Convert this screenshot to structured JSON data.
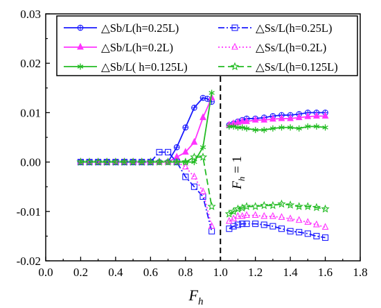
{
  "chart_data": {
    "type": "line",
    "xlabel": "F_h",
    "xlabel_main": "F",
    "xlabel_sub": "h",
    "ylabel": "",
    "xlim": [
      0.0,
      1.8
    ],
    "ylim": [
      -0.02,
      0.03
    ],
    "xticks": [
      0.0,
      0.2,
      0.4,
      0.6,
      0.8,
      1.0,
      1.2,
      1.4,
      1.6,
      1.8
    ],
    "xtick_labels": [
      "0.0",
      "0.2",
      "0.4",
      "0.6",
      "0.8",
      "1.0",
      "1.2",
      "1.4",
      "1.6",
      "1.8"
    ],
    "yticks": [
      -0.02,
      -0.01,
      0.0,
      0.01,
      0.02,
      0.03
    ],
    "ytick_labels": [
      "-0.02",
      "-0.01",
      "0.00",
      "0.01",
      "0.02",
      "0.03"
    ],
    "grid": false,
    "legend_position": "top",
    "annotations": [
      {
        "text": "F_h = 1",
        "main": "F",
        "sub": "h",
        "rest": " = 1",
        "x": 1.0
      }
    ],
    "series": [
      {
        "name": "△Sb/L(h=0.25L)",
        "color": "#1a1aff",
        "marker": "circle",
        "dash": "solid",
        "x": [
          0.2,
          0.25,
          0.3,
          0.35,
          0.4,
          0.45,
          0.5,
          0.55,
          0.6,
          0.65,
          0.7,
          0.75,
          0.8,
          0.85,
          0.9,
          0.925,
          0.95,
          1.05,
          1.075,
          1.1,
          1.125,
          1.15,
          1.2,
          1.25,
          1.3,
          1.35,
          1.4,
          1.45,
          1.5,
          1.55,
          1.6
        ],
        "y": [
          0.0,
          0.0,
          0.0,
          0.0,
          0.0,
          0.0,
          0.0,
          0.0,
          0.0,
          0.0,
          0.0,
          0.003,
          0.007,
          0.011,
          0.013,
          0.0128,
          0.0122,
          0.0075,
          0.0078,
          0.0082,
          0.0085,
          0.0088,
          0.0088,
          0.009,
          0.0093,
          0.0095,
          0.0095,
          0.0097,
          0.01,
          0.01,
          0.01
        ]
      },
      {
        "name": "△Sb/L(h=0.2L)",
        "color": "#ff33ff",
        "marker": "triangle",
        "dash": "solid",
        "x": [
          0.2,
          0.25,
          0.3,
          0.35,
          0.4,
          0.45,
          0.5,
          0.55,
          0.6,
          0.65,
          0.7,
          0.75,
          0.8,
          0.85,
          0.9,
          0.95,
          1.05,
          1.075,
          1.1,
          1.125,
          1.15,
          1.2,
          1.25,
          1.3,
          1.35,
          1.4,
          1.45,
          1.5,
          1.55,
          1.6
        ],
        "y": [
          0.0,
          0.0,
          0.0,
          0.0,
          0.0,
          0.0,
          0.0,
          0.0,
          0.0,
          0.0,
          0.0,
          0.001,
          0.002,
          0.004,
          0.009,
          0.013,
          0.0075,
          0.0078,
          0.008,
          0.0082,
          0.0082,
          0.0085,
          0.0085,
          0.0087,
          0.0088,
          0.0088,
          0.009,
          0.0092,
          0.0093,
          0.0093
        ]
      },
      {
        "name": "△Sb/L( h=0.125L)",
        "color": "#22bb22",
        "marker": "asterisk",
        "dash": "solid",
        "x": [
          0.2,
          0.25,
          0.3,
          0.35,
          0.4,
          0.45,
          0.5,
          0.55,
          0.6,
          0.65,
          0.7,
          0.75,
          0.8,
          0.85,
          0.9,
          0.95,
          1.05,
          1.075,
          1.1,
          1.125,
          1.15,
          1.2,
          1.25,
          1.3,
          1.35,
          1.4,
          1.45,
          1.5,
          1.55,
          1.6
        ],
        "y": [
          0.0,
          0.0,
          0.0,
          0.0,
          0.0,
          0.0,
          0.0,
          0.0,
          0.0,
          0.0,
          0.0,
          0.0,
          0.0,
          0.0,
          0.003,
          0.014,
          0.0072,
          0.0072,
          0.007,
          0.007,
          0.0068,
          0.0065,
          0.0065,
          0.0068,
          0.007,
          0.007,
          0.0068,
          0.0072,
          0.0072,
          0.007
        ]
      },
      {
        "name": "△Ss/L(h=0.25L)",
        "color": "#1a1aff",
        "marker": "square",
        "dash": "dashdot",
        "x": [
          0.2,
          0.25,
          0.3,
          0.35,
          0.4,
          0.45,
          0.5,
          0.55,
          0.6,
          0.65,
          0.7,
          0.75,
          0.8,
          0.85,
          0.9,
          0.95,
          1.05,
          1.075,
          1.1,
          1.125,
          1.15,
          1.2,
          1.25,
          1.3,
          1.35,
          1.4,
          1.45,
          1.5,
          1.55,
          1.6
        ],
        "y": [
          0.0,
          0.0,
          0.0,
          0.0,
          0.0,
          0.0,
          0.0,
          0.0,
          0.0,
          0.002,
          0.002,
          0.0,
          -0.003,
          -0.005,
          -0.007,
          -0.014,
          -0.0135,
          -0.013,
          -0.0127,
          -0.0125,
          -0.0125,
          -0.0125,
          -0.0127,
          -0.013,
          -0.0135,
          -0.014,
          -0.0142,
          -0.0145,
          -0.015,
          -0.0153
        ]
      },
      {
        "name": "△Ss/L(h=0.2L)",
        "color": "#ff33ff",
        "marker": "triangle-open",
        "dash": "dotted",
        "x": [
          0.2,
          0.25,
          0.3,
          0.35,
          0.4,
          0.45,
          0.5,
          0.55,
          0.6,
          0.65,
          0.7,
          0.75,
          0.8,
          0.85,
          0.9,
          0.95,
          1.05,
          1.075,
          1.1,
          1.125,
          1.15,
          1.2,
          1.25,
          1.3,
          1.35,
          1.4,
          1.45,
          1.5,
          1.55,
          1.6
        ],
        "y": [
          0.0,
          0.0,
          0.0,
          0.0,
          0.0,
          0.0,
          0.0,
          0.0,
          0.0,
          0.0,
          0.0,
          0.0,
          -0.001,
          -0.003,
          -0.006,
          -0.013,
          -0.012,
          -0.0115,
          -0.011,
          -0.011,
          -0.0108,
          -0.0108,
          -0.011,
          -0.011,
          -0.0112,
          -0.0115,
          -0.0118,
          -0.0122,
          -0.0127,
          -0.0132
        ]
      },
      {
        "name": "△Ss/L(h=0.125L)",
        "color": "#22bb22",
        "marker": "star",
        "dash": "dashed",
        "x": [
          0.2,
          0.25,
          0.3,
          0.35,
          0.4,
          0.45,
          0.5,
          0.55,
          0.6,
          0.65,
          0.7,
          0.75,
          0.8,
          0.85,
          0.9,
          0.95,
          1.05,
          1.075,
          1.1,
          1.125,
          1.15,
          1.2,
          1.25,
          1.3,
          1.35,
          1.4,
          1.45,
          1.5,
          1.55,
          1.6
        ],
        "y": [
          0.0,
          0.0,
          0.0,
          0.0,
          0.0,
          0.0,
          0.0,
          0.0,
          0.0,
          0.0,
          0.0,
          0.0,
          0.0,
          0.001,
          0.001,
          -0.009,
          -0.0105,
          -0.01,
          -0.0095,
          -0.0093,
          -0.009,
          -0.009,
          -0.0088,
          -0.0088,
          -0.0085,
          -0.0087,
          -0.009,
          -0.009,
          -0.0092,
          -0.0095
        ]
      }
    ]
  }
}
